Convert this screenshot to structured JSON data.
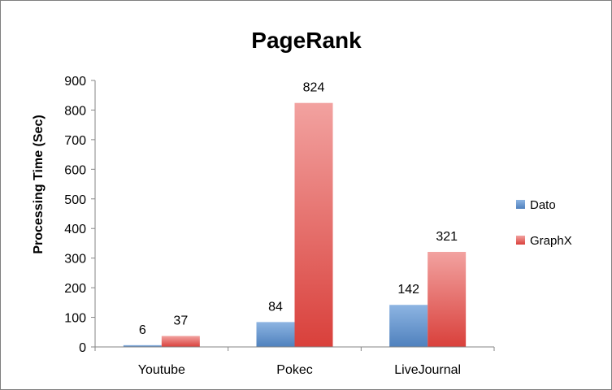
{
  "chart_data": {
    "type": "bar",
    "title": "PageRank",
    "xlabel": "",
    "ylabel": "Processing Time (Sec)",
    "ylim": [
      0,
      900
    ],
    "yticks": [
      0,
      100,
      200,
      300,
      400,
      500,
      600,
      700,
      800,
      900
    ],
    "categories": [
      "Youtube",
      "Pokec",
      "LiveJournal"
    ],
    "series": [
      {
        "name": "Dato",
        "values": [
          6,
          84,
          142
        ],
        "color_top": "#8db4e2",
        "color_bottom": "#4f81bd"
      },
      {
        "name": "GraphX",
        "values": [
          37,
          824,
          321
        ],
        "color_top": "#f2a2a0",
        "color_bottom": "#d9403b"
      }
    ],
    "grid": false,
    "legend_position": "right"
  }
}
